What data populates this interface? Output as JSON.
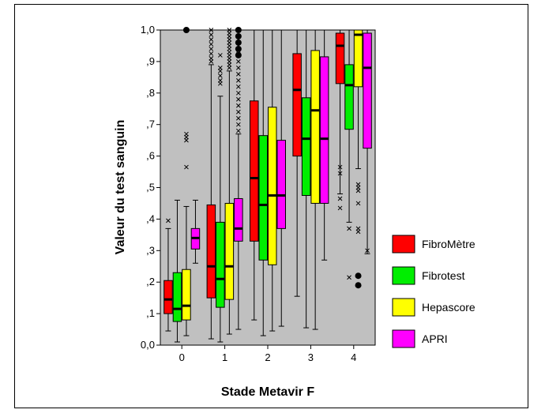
{
  "chart_data": {
    "type": "boxplot",
    "title": "",
    "xlabel": "Stade Metavir F",
    "ylabel": "Valeur du test sanguin",
    "categories": [
      "0",
      "1",
      "2",
      "3",
      "4"
    ],
    "ylim": [
      0,
      1
    ],
    "yticks": [
      {
        "value": 0.0,
        "label": "0,0"
      },
      {
        "value": 0.1,
        "label": ",1"
      },
      {
        "value": 0.2,
        "label": ",2"
      },
      {
        "value": 0.3,
        "label": ",3"
      },
      {
        "value": 0.4,
        "label": ",4"
      },
      {
        "value": 0.5,
        "label": ",5"
      },
      {
        "value": 0.6,
        "label": ",6"
      },
      {
        "value": 0.7,
        "label": ",7"
      },
      {
        "value": 0.8,
        "label": ",8"
      },
      {
        "value": 0.9,
        "label": ",9"
      },
      {
        "value": 1.0,
        "label": "1,0"
      }
    ],
    "grid": false,
    "legend_position": "right",
    "series": [
      {
        "name": "FibroMètre",
        "color": "#ff0000",
        "boxes": [
          {
            "min": 0.045,
            "q1": 0.1,
            "median": 0.145,
            "q3": 0.205,
            "max": 0.37,
            "outliers_x": [
              0.395
            ],
            "outliers_dot": []
          },
          {
            "min": 0.02,
            "q1": 0.15,
            "median": 0.25,
            "q3": 0.445,
            "max": 0.89,
            "outliers_x": [
              0.9,
              0.91,
              0.925,
              0.94,
              0.955,
              0.97,
              0.985,
              1.0
            ],
            "outliers_dot": []
          },
          {
            "min": 0.08,
            "q1": 0.33,
            "median": 0.53,
            "q3": 0.775,
            "max": 1.0,
            "outliers_x": [],
            "outliers_dot": []
          },
          {
            "min": 0.155,
            "q1": 0.6,
            "median": 0.81,
            "q3": 0.925,
            "max": 1.0,
            "outliers_x": [],
            "outliers_dot": []
          },
          {
            "min": 0.48,
            "q1": 0.83,
            "median": 0.95,
            "q3": 0.99,
            "max": 1.0,
            "outliers_x": [
              0.435,
              0.465,
              0.545,
              0.565
            ],
            "outliers_dot": []
          }
        ]
      },
      {
        "name": "Fibrotest",
        "color": "#00ee00",
        "boxes": [
          {
            "min": 0.01,
            "q1": 0.075,
            "median": 0.115,
            "q3": 0.23,
            "max": 0.46,
            "outliers_x": [],
            "outliers_dot": []
          },
          {
            "min": 0.01,
            "q1": 0.12,
            "median": 0.21,
            "q3": 0.39,
            "max": 0.79,
            "outliers_x": [
              0.83,
              0.84,
              0.855,
              0.87,
              0.88,
              0.92
            ],
            "outliers_dot": []
          },
          {
            "min": 0.03,
            "q1": 0.27,
            "median": 0.445,
            "q3": 0.665,
            "max": 1.0,
            "outliers_x": [],
            "outliers_dot": []
          },
          {
            "min": 0.055,
            "q1": 0.475,
            "median": 0.655,
            "q3": 0.785,
            "max": 1.0,
            "outliers_x": [],
            "outliers_dot": []
          },
          {
            "min": 0.39,
            "q1": 0.685,
            "median": 0.825,
            "q3": 0.89,
            "max": 1.0,
            "outliers_x": [
              0.215,
              0.37
            ],
            "outliers_dot": []
          }
        ]
      },
      {
        "name": "Hepascore",
        "color": "#ffff00",
        "boxes": [
          {
            "min": 0.03,
            "q1": 0.08,
            "median": 0.125,
            "q3": 0.24,
            "max": 0.44,
            "outliers_x": [
              0.565,
              0.65,
              0.66,
              0.67
            ],
            "outliers_dot": [
              1.0
            ]
          },
          {
            "min": 0.035,
            "q1": 0.145,
            "median": 0.25,
            "q3": 0.45,
            "max": 0.87,
            "outliers_x": [
              0.88,
              0.89,
              0.9,
              0.91,
              0.92,
              0.93,
              0.94,
              0.95,
              0.96,
              0.97,
              0.98,
              0.99,
              1.0
            ],
            "outliers_dot": []
          },
          {
            "min": 0.045,
            "q1": 0.255,
            "median": 0.475,
            "q3": 0.755,
            "max": 1.0,
            "outliers_x": [],
            "outliers_dot": []
          },
          {
            "min": 0.05,
            "q1": 0.45,
            "median": 0.745,
            "q3": 0.935,
            "max": 1.0,
            "outliers_x": [],
            "outliers_dot": []
          },
          {
            "min": 0.56,
            "q1": 0.82,
            "median": 0.985,
            "q3": 1.0,
            "max": 1.0,
            "outliers_x": [
              0.36,
              0.37,
              0.45,
              0.49,
              0.5,
              0.51
            ],
            "outliers_dot": [
              0.19,
              0.22
            ]
          }
        ]
      },
      {
        "name": "APRI",
        "color": "#ff00ff",
        "boxes": [
          {
            "min": 0.26,
            "q1": 0.305,
            "median": 0.34,
            "q3": 0.37,
            "max": 0.46,
            "outliers_x": [],
            "outliers_dot": []
          },
          {
            "min": 0.05,
            "q1": 0.33,
            "median": 0.37,
            "q3": 0.465,
            "max": 0.67,
            "outliers_x": [
              0.68,
              0.7,
              0.72,
              0.74,
              0.76,
              0.78,
              0.8,
              0.82,
              0.84,
              0.86,
              0.88,
              0.9,
              0.935,
              0.95,
              0.97,
              0.98
            ],
            "outliers_dot": [
              0.92,
              0.94,
              0.96,
              0.98,
              1.0
            ]
          },
          {
            "min": 0.06,
            "q1": 0.37,
            "median": 0.475,
            "q3": 0.65,
            "max": 1.0,
            "outliers_x": [],
            "outliers_dot": []
          },
          {
            "min": 0.27,
            "q1": 0.45,
            "median": 0.655,
            "q3": 0.915,
            "max": 1.0,
            "outliers_x": [],
            "outliers_dot": []
          },
          {
            "min": 0.29,
            "q1": 0.625,
            "median": 0.88,
            "q3": 0.99,
            "max": 1.0,
            "outliers_x": [
              0.3
            ],
            "outliers_dot": []
          }
        ]
      }
    ]
  }
}
